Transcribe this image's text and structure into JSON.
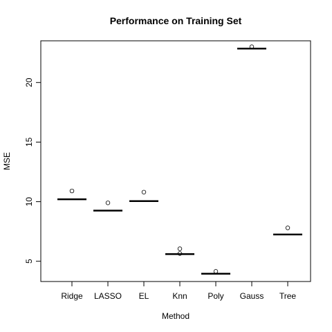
{
  "chart_data": {
    "type": "box",
    "title": "Performance on Training Set",
    "xlabel": "Method",
    "ylabel": "MSE",
    "categories": [
      "Ridge",
      "LASSO",
      "EL",
      "Knn",
      "Poly",
      "Gauss",
      "Tree"
    ],
    "medians": [
      10.2,
      9.25,
      10.05,
      5.6,
      3.95,
      22.85,
      7.25
    ],
    "outliers": [
      [
        10.9
      ],
      [
        9.9
      ],
      [
        10.8
      ],
      [
        6.05,
        5.65
      ],
      [
        4.15
      ],
      [
        23.0
      ],
      [
        7.8
      ]
    ],
    "ylim": [
      3.3,
      23.5
    ],
    "yticks": [
      5,
      10,
      15,
      20
    ],
    "grid": false,
    "legend": "none"
  }
}
